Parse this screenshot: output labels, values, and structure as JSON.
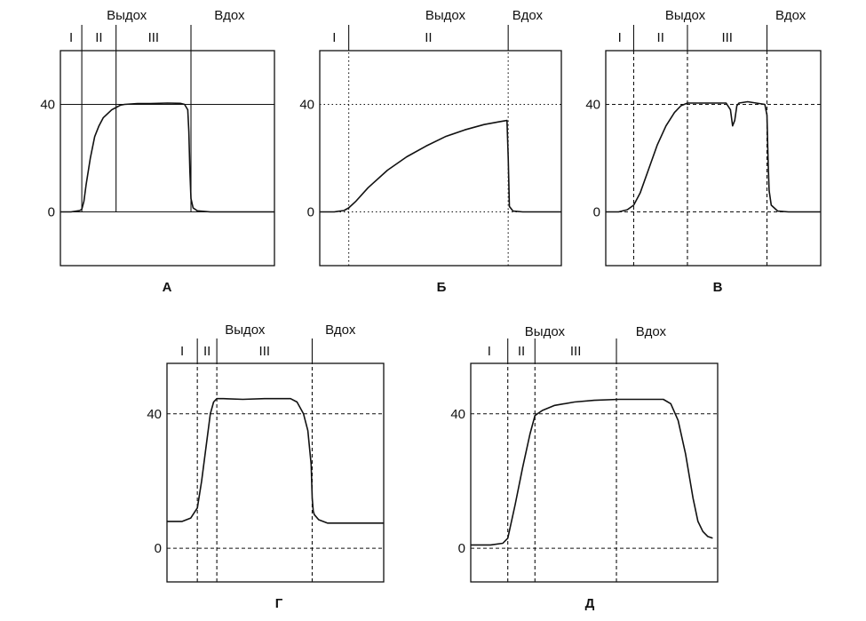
{
  "chart_data": [
    {
      "type": "line",
      "caption": "А",
      "ylim": [
        -20,
        60
      ],
      "xlim": [
        0,
        100
      ],
      "y_ticks": [
        {
          "value": 0,
          "label": "0"
        },
        {
          "value": 40,
          "label": "40"
        }
      ],
      "phases": [
        {
          "label": "I",
          "x_start": 0,
          "x_end": 10
        },
        {
          "label": "II",
          "x_start": 10,
          "x_end": 26
        },
        {
          "label": "III",
          "x_start": 26,
          "x_end": 61
        }
      ],
      "phase_boundaries": [
        10,
        26,
        61
      ],
      "boundary_style": "solid",
      "y_gridlines": [
        0,
        40
      ],
      "grid_style": "solid",
      "top_labels": [
        {
          "text": "Выдох",
          "x_center": 31
        },
        {
          "text": "Вдох",
          "x_center": 79
        }
      ],
      "series": [
        {
          "x": [
            0,
            5,
            9,
            10,
            11,
            12,
            14,
            16,
            18,
            20,
            24,
            28,
            30,
            36,
            42,
            50,
            56,
            58,
            59.5,
            60,
            60.5,
            61,
            62,
            64,
            70,
            80,
            100
          ],
          "y": [
            0,
            0,
            0.5,
            1,
            4,
            10,
            20,
            28,
            32,
            35,
            38,
            39.7,
            40,
            40.3,
            40.3,
            40.5,
            40.4,
            40,
            38,
            30,
            15,
            5,
            1.5,
            0.4,
            0,
            0,
            0
          ]
        }
      ]
    },
    {
      "type": "line",
      "caption": "Б",
      "ylim": [
        -20,
        60
      ],
      "xlim": [
        0,
        100
      ],
      "y_ticks": [
        {
          "value": 0,
          "label": "0"
        },
        {
          "value": 40,
          "label": "40"
        }
      ],
      "phases": [
        {
          "label": "I",
          "x_start": 0,
          "x_end": 12
        },
        {
          "label": "II",
          "x_start": 12,
          "x_end": 78
        }
      ],
      "phase_boundaries": [
        12,
        78
      ],
      "boundary_style": "dotted",
      "y_gridlines": [
        0,
        40
      ],
      "grid_style": "dotted",
      "top_labels": [
        {
          "text": "Выдох",
          "x_center": 52
        },
        {
          "text": "Вдох",
          "x_center": 86
        }
      ],
      "series": [
        {
          "x": [
            0,
            6,
            10,
            12,
            15,
            20,
            28,
            36,
            44,
            52,
            60,
            68,
            74,
            77.5,
            78,
            78.5,
            80,
            84,
            100
          ],
          "y": [
            0,
            0,
            0.5,
            1.5,
            4,
            9,
            15.5,
            20.5,
            24.5,
            28,
            30.5,
            32.5,
            33.5,
            34,
            20,
            2,
            0.3,
            0,
            0
          ]
        }
      ]
    },
    {
      "type": "line",
      "caption": "В",
      "ylim": [
        -20,
        60
      ],
      "xlim": [
        0,
        100
      ],
      "y_ticks": [
        {
          "value": 0,
          "label": "0"
        },
        {
          "value": 40,
          "label": "40"
        }
      ],
      "phases": [
        {
          "label": "I",
          "x_start": 0,
          "x_end": 13
        },
        {
          "label": "II",
          "x_start": 13,
          "x_end": 38
        },
        {
          "label": "III",
          "x_start": 38,
          "x_end": 75
        }
      ],
      "phase_boundaries": [
        13,
        38,
        75
      ],
      "boundary_style": "dashed",
      "y_gridlines": [
        0,
        40
      ],
      "grid_style": "dashed",
      "top_labels": [
        {
          "text": "Выдох",
          "x_center": 37
        },
        {
          "text": "Вдох",
          "x_center": 86
        }
      ],
      "series": [
        {
          "x": [
            0,
            6,
            10,
            13,
            16,
            20,
            24,
            28,
            32,
            35,
            38,
            40,
            46,
            56,
            58,
            59,
            60,
            61,
            62,
            66,
            70,
            74,
            75,
            75.5,
            76,
            77,
            80,
            85,
            100
          ],
          "y": [
            0,
            0,
            0.8,
            2.5,
            7,
            16,
            25,
            32,
            37,
            39.5,
            40.5,
            40.5,
            40.5,
            40.5,
            38,
            32,
            34,
            39.5,
            40.5,
            41,
            40.5,
            40,
            36,
            20,
            8,
            2.5,
            0.3,
            0,
            0
          ]
        }
      ]
    },
    {
      "type": "line",
      "caption": "Г",
      "ylim": [
        -10,
        55
      ],
      "xlim": [
        0,
        100
      ],
      "y_ticks": [
        {
          "value": 0,
          "label": "0"
        },
        {
          "value": 40,
          "label": "40"
        }
      ],
      "phases": [
        {
          "label": "I",
          "x_start": 0,
          "x_end": 14
        },
        {
          "label": "II",
          "x_start": 14,
          "x_end": 23
        },
        {
          "label": "III",
          "x_start": 23,
          "x_end": 67
        }
      ],
      "phase_boundaries": [
        14,
        23,
        67
      ],
      "boundary_style": "dashed",
      "y_gridlines": [
        0,
        40
      ],
      "grid_style": "dashed",
      "top_labels": [
        {
          "text": "Выдох",
          "x_center": 36
        },
        {
          "text": "Вдох",
          "x_center": 80
        }
      ],
      "series": [
        {
          "x": [
            0,
            7,
            11,
            14,
            16,
            18,
            20,
            21.5,
            23,
            26,
            35,
            45,
            57,
            60,
            63,
            65,
            66.5,
            67,
            67.5,
            68,
            70,
            74,
            80,
            90,
            100
          ],
          "y": [
            8,
            8,
            9,
            12,
            20,
            30,
            40,
            43.5,
            44.5,
            44.5,
            44.3,
            44.5,
            44.5,
            43.5,
            40,
            35,
            25,
            15,
            11,
            10,
            8.5,
            7.5,
            7.5,
            7.5,
            7.5
          ]
        }
      ]
    },
    {
      "type": "line",
      "caption": "Д",
      "ylim": [
        -10,
        55
      ],
      "xlim": [
        0,
        100
      ],
      "y_ticks": [
        {
          "value": 0,
          "label": "0"
        },
        {
          "value": 40,
          "label": "40"
        }
      ],
      "phases": [
        {
          "label": "I",
          "x_start": 0,
          "x_end": 15
        },
        {
          "label": "II",
          "x_start": 15,
          "x_end": 26
        },
        {
          "label": "III",
          "x_start": 26,
          "x_end": 59
        }
      ],
      "phase_boundaries": [
        15,
        26,
        59
      ],
      "boundary_style": "dashed",
      "y_gridlines": [
        0,
        40
      ],
      "grid_style": "dashed",
      "top_labels": [
        {
          "text": "Выдох",
          "x_center": 30
        },
        {
          "text": "Вдох",
          "x_center": 73
        }
      ],
      "series": [
        {
          "x": [
            0,
            8,
            13,
            15,
            18,
            21,
            24,
            26,
            29,
            34,
            42,
            50,
            60,
            70,
            78,
            81,
            84,
            87,
            90,
            92,
            94,
            96,
            98
          ],
          "y": [
            1,
            1,
            1.5,
            3,
            13,
            24,
            34,
            39.5,
            41,
            42.5,
            43.5,
            44,
            44.3,
            44.3,
            44.3,
            43,
            38,
            28,
            15,
            8,
            5,
            3.5,
            3
          ]
        }
      ]
    }
  ]
}
